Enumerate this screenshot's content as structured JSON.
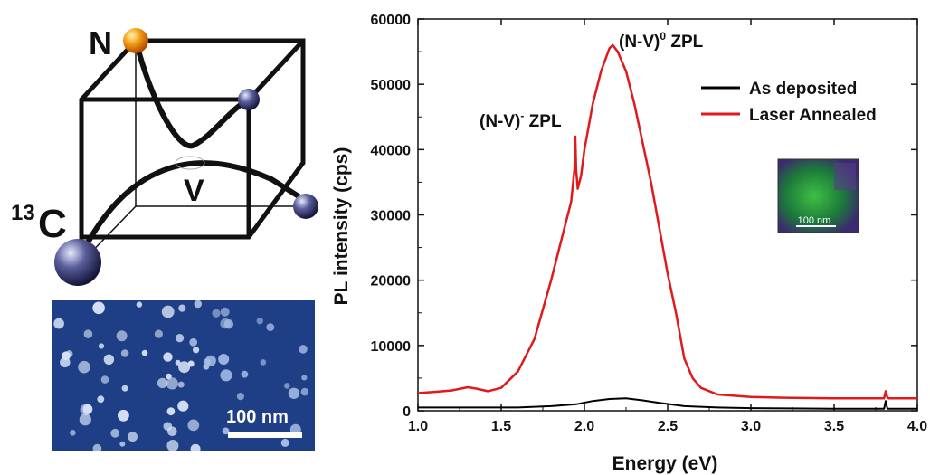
{
  "lattice": {
    "label_n": "N",
    "label_v": "V",
    "label_c_sup": "13",
    "label_c": "C"
  },
  "sem_inset": {
    "scale_label": "100 nm"
  },
  "chart_data": {
    "type": "line",
    "xlabel": "Energy (eV)",
    "ylabel": "PL intensity (cps)",
    "xlim": [
      1.0,
      4.0
    ],
    "ylim": [
      0,
      60000
    ],
    "xticks": [
      "1.0",
      "1.5",
      "2.0",
      "2.5",
      "3.0",
      "3.5",
      "4.0"
    ],
    "yticks": [
      "0",
      "10000",
      "20000",
      "30000",
      "40000",
      "50000",
      "60000"
    ],
    "legend_position": "top-right",
    "series": [
      {
        "name": "As deposited",
        "color": "#000000",
        "x": [
          1.0,
          1.2,
          1.4,
          1.6,
          1.8,
          1.95,
          2.05,
          2.15,
          2.25,
          2.35,
          2.45,
          2.6,
          2.8,
          3.0,
          3.5,
          3.8,
          3.81,
          3.82,
          3.83,
          4.0
        ],
        "y": [
          500,
          500,
          500,
          500,
          700,
          1000,
          1500,
          1800,
          1900,
          1600,
          1200,
          700,
          500,
          400,
          300,
          300,
          1500,
          300,
          300,
          300
        ]
      },
      {
        "name": "Laser Annealed",
        "color": "#e0191b",
        "x": [
          1.0,
          1.1,
          1.2,
          1.3,
          1.35,
          1.42,
          1.5,
          1.6,
          1.7,
          1.8,
          1.88,
          1.92,
          1.94,
          1.945,
          1.95,
          1.96,
          1.98,
          2.0,
          2.05,
          2.1,
          2.15,
          2.17,
          2.2,
          2.25,
          2.3,
          2.35,
          2.4,
          2.45,
          2.5,
          2.55,
          2.6,
          2.65,
          2.7,
          2.8,
          3.0,
          3.2,
          3.5,
          3.8,
          3.81,
          3.82,
          3.83,
          4.0
        ],
        "y": [
          2700,
          2900,
          3100,
          3600,
          3400,
          3000,
          3500,
          6000,
          11000,
          20000,
          28000,
          32000,
          37000,
          42000,
          37000,
          34000,
          36000,
          40000,
          47000,
          52000,
          55500,
          56000,
          55000,
          52000,
          47000,
          41000,
          35000,
          28000,
          21000,
          15000,
          8000,
          5000,
          3500,
          2500,
          2100,
          2000,
          1900,
          1900,
          3000,
          2000,
          1900,
          1900
        ]
      }
    ],
    "annotations": [
      {
        "text": "(N-V)",
        "sup": "-",
        "tail": " ZPL",
        "x": 1.94,
        "y": 42000
      },
      {
        "text": "(N-V)",
        "sup": "0",
        "tail": " ZPL",
        "x": 2.17,
        "y": 56000
      }
    ],
    "inset_scale_label": "100 nm"
  }
}
